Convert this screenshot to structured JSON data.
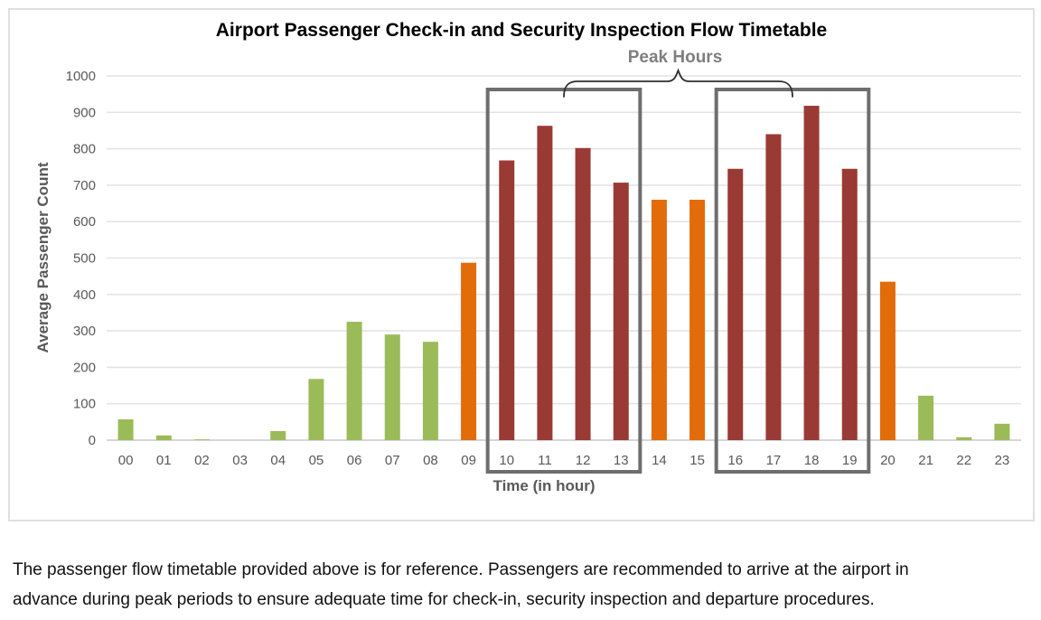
{
  "chart": {
    "title": "Airport Passenger Check-in and Security Inspection Flow Timetable",
    "peak_label": "Peak Hours",
    "x_axis_title": "Time (in hour)",
    "y_axis_title": "Average Passenger Count"
  },
  "chart_data": {
    "type": "bar",
    "title": "Airport Passenger Check-in and Security Inspection Flow Timetable",
    "xlabel": "Time (in hour)",
    "ylabel": "Average Passenger Count",
    "categories": [
      "00",
      "01",
      "02",
      "03",
      "04",
      "05",
      "06",
      "07",
      "08",
      "09",
      "10",
      "11",
      "12",
      "13",
      "14",
      "15",
      "16",
      "17",
      "18",
      "19",
      "20",
      "21",
      "22",
      "23"
    ],
    "values": [
      57,
      13,
      2,
      0,
      25,
      168,
      325,
      290,
      270,
      487,
      768,
      863,
      802,
      707,
      660,
      660,
      745,
      840,
      918,
      745,
      435,
      122,
      8,
      45
    ],
    "bar_color_keys": [
      "green",
      "green",
      "green",
      "green",
      "green",
      "green",
      "green",
      "green",
      "green",
      "orange",
      "red",
      "red",
      "red",
      "red",
      "orange",
      "orange",
      "red",
      "red",
      "red",
      "red",
      "orange",
      "green",
      "green",
      "green"
    ],
    "ylim": [
      0,
      1000
    ],
    "ytick_step": 100,
    "grid": true,
    "legend": "none",
    "highlights": [
      {
        "label": "Peak Hours",
        "from": "10",
        "to": "13"
      },
      {
        "label": "Peak Hours",
        "from": "16",
        "to": "19"
      }
    ]
  },
  "colors": {
    "green": "#9BBB59",
    "orange": "#E26B0A",
    "red": "#9A3A35",
    "box_border": "#6E6E6E",
    "grid": "#E4E4E4",
    "axis": "#C9C9C9",
    "tick_text": "#595959",
    "peak_label": "#7F7F7F",
    "brace": "#2F2F2F"
  },
  "caption": {
    "line1": "The passenger flow timetable provided above is for reference. Passengers are recommended to arrive at the airport in",
    "line2": "advance during peak periods to ensure adequate time for check-in, security inspection and departure procedures."
  }
}
